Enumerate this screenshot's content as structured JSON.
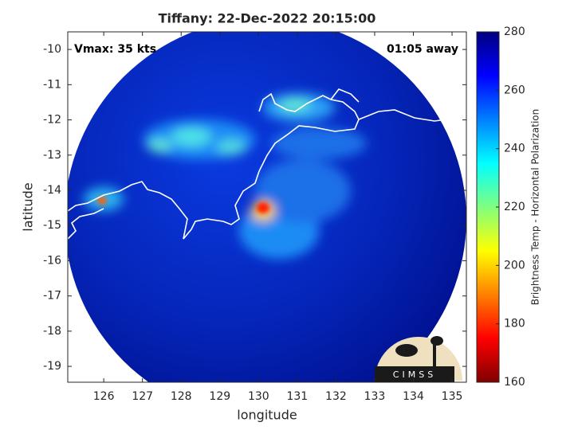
{
  "chart_data": {
    "type": "image",
    "title": "Tiffany: 22-Dec-2022 20:15:00",
    "annotations": [
      "Vmax: 35 kts",
      "01:05 away"
    ],
    "logo_text": "CIMSS",
    "xlabel": "longitude",
    "ylabel": "latitude",
    "xlim": [
      125.07,
      135.37
    ],
    "xticks": [
      126,
      127,
      128,
      129,
      130,
      131,
      132,
      133,
      134,
      135
    ],
    "ylim": [
      -19.45,
      -9.5
    ],
    "yticks": [
      -19,
      -18,
      -17,
      -16,
      -15,
      -14,
      -13,
      -12,
      -11,
      -10
    ],
    "colorbar": {
      "label": "Brightness Temp - Horizontal Polarization",
      "lim": [
        160,
        280
      ],
      "ticks": [
        160,
        180,
        200,
        220,
        240,
        260,
        280
      ]
    }
  }
}
